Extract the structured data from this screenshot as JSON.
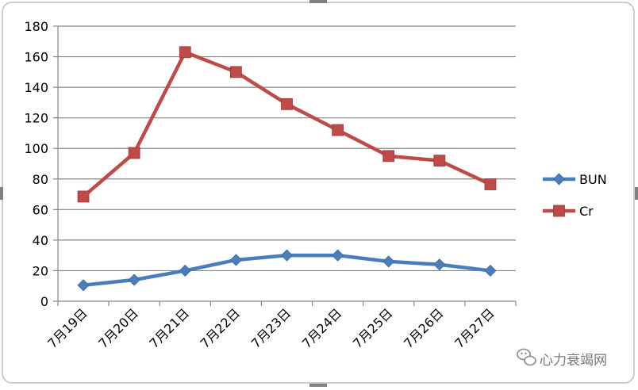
{
  "chart_data": {
    "type": "line",
    "categories": [
      "7月19日",
      "7月20日",
      "7月21日",
      "7月22日",
      "7月23日",
      "7月24日",
      "7月25日",
      "7月26日",
      "7月27日"
    ],
    "series": [
      {
        "name": "BUN",
        "values": [
          10.5,
          14,
          20,
          27,
          30,
          30,
          26,
          24,
          20
        ],
        "color": "#4a7ebb",
        "marker": "diamond"
      },
      {
        "name": "Cr",
        "values": [
          68.5,
          97,
          163,
          150,
          129,
          112,
          95,
          92,
          76.5
        ],
        "color": "#be4b48",
        "marker": "square"
      }
    ],
    "ylim": [
      0,
      180
    ],
    "yticks": [
      "0",
      "20",
      "40",
      "60",
      "80",
      "100",
      "120",
      "140",
      "160",
      "180"
    ],
    "grid": true,
    "legend_position": "right",
    "title": "",
    "xlabel": "",
    "ylabel": ""
  },
  "watermark": {
    "text": "心力衰竭网",
    "icon": "wechat-icon"
  }
}
